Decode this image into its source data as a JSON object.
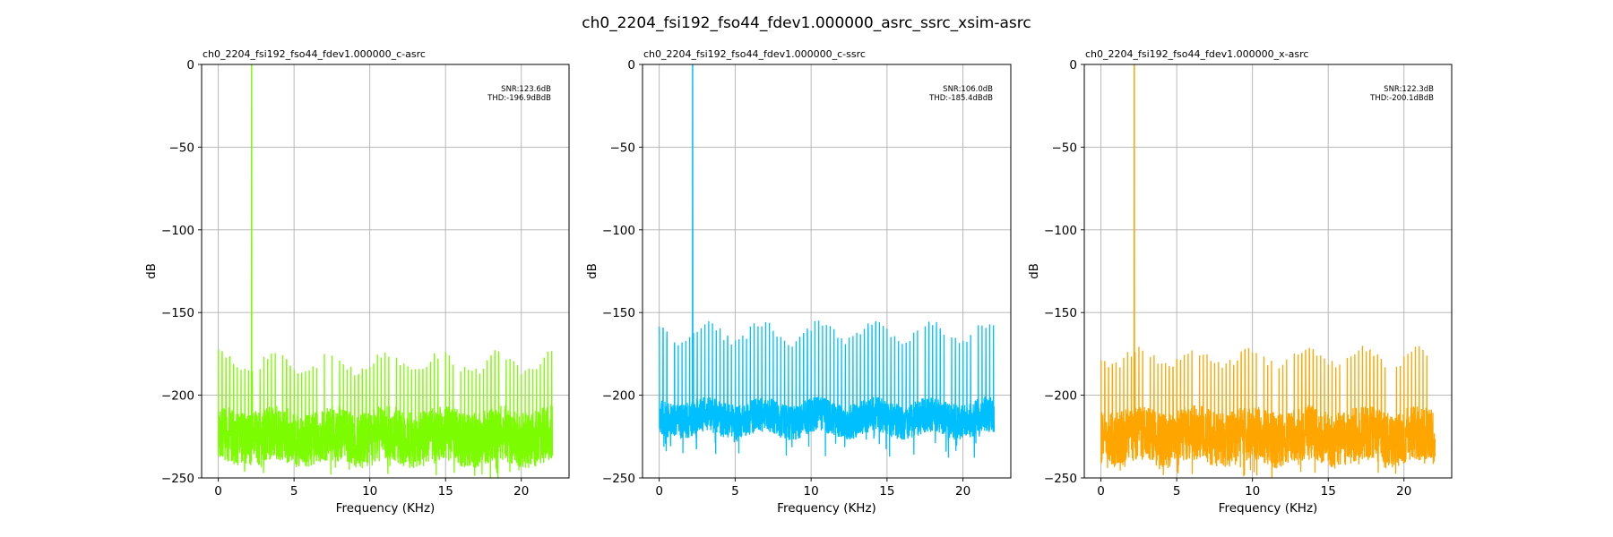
{
  "chart_data": {
    "type": "line",
    "title": "ch0_2204_fsi192_fso44_fdev1.000000_asrc_ssrc_xsim-asrc",
    "subplots": [
      {
        "title": "ch0_2204_fsi192_fso44_fdev1.000000_c-asrc",
        "xlabel": "Frequency (KHz)",
        "ylabel": "dB",
        "xlim": [
          -1.1,
          23.15
        ],
        "ylim": [
          -250,
          0
        ],
        "xticks": [
          "0",
          "5",
          "10",
          "15",
          "20"
        ],
        "yticks": [
          "0",
          "−50",
          "−100",
          "−150",
          "−200",
          "−250"
        ],
        "grid": true,
        "color": "#7CFC00",
        "annotation": {
          "snr": "SNR:123.6dB",
          "thd": "THD:-196.9dBdB"
        },
        "x_range": [
          0,
          22.05
        ],
        "tone": {
          "freq_khz": 2.2,
          "level_db": 0
        },
        "spur_spacing_khz": 0.25,
        "spur_peak_db": [
          -172,
          -192
        ],
        "noise_floor_db": [
          -250,
          -205
        ]
      },
      {
        "title": "ch0_2204_fsi192_fso44_fdev1.000000_c-ssrc",
        "xlabel": "Frequency (KHz)",
        "ylabel": "dB",
        "xlim": [
          -1.1,
          23.15
        ],
        "ylim": [
          -250,
          0
        ],
        "xticks": [
          "0",
          "5",
          "10",
          "15",
          "20"
        ],
        "yticks": [
          "0",
          "−50",
          "−100",
          "−150",
          "−200",
          "−250"
        ],
        "grid": true,
        "color": "#00BFFF",
        "annotation": {
          "snr": "SNR:106.0dB",
          "thd": "THD:-185.4dBdB"
        },
        "x_range": [
          0,
          22.05
        ],
        "tone": {
          "freq_khz": 2.2,
          "level_db": 0
        },
        "spur_spacing_khz": 0.25,
        "spur_peak_db": [
          -154,
          -172
        ],
        "noise_floor_db": [
          -238,
          -195
        ]
      },
      {
        "title": "ch0_2204_fsi192_fso44_fdev1.000000_x-asrc",
        "xlabel": "Frequency (KHz)",
        "ylabel": "dB",
        "xlim": [
          -1.1,
          23.15
        ],
        "ylim": [
          -250,
          0
        ],
        "xticks": [
          "0",
          "5",
          "10",
          "15",
          "20"
        ],
        "yticks": [
          "0",
          "−50",
          "−100",
          "−150",
          "−200",
          "−250"
        ],
        "grid": true,
        "color": "#FFA500",
        "annotation": {
          "snr": "SNR:122.3dB",
          "thd": "THD:-200.1dBdB"
        },
        "x_range": [
          0,
          22.05
        ],
        "tone": {
          "freq_khz": 2.2,
          "level_db": 0
        },
        "spur_spacing_khz": 0.25,
        "spur_peak_db": [
          -170,
          -186
        ],
        "noise_floor_db": [
          -250,
          -205
        ]
      }
    ]
  }
}
